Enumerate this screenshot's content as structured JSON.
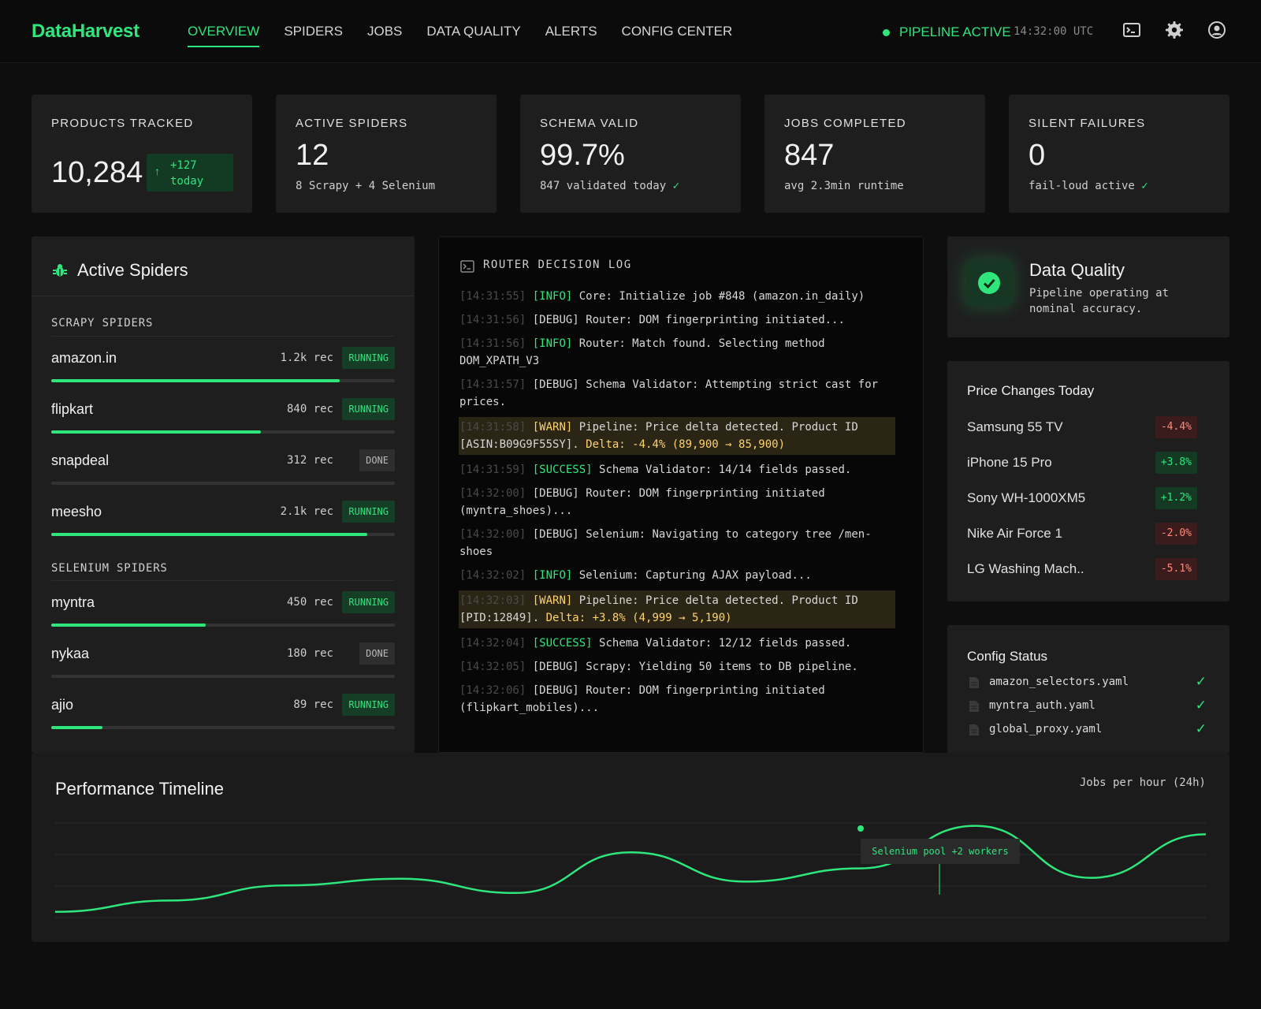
{
  "brand": "DataHarvest",
  "nav": {
    "links": [
      "OVERVIEW",
      "SPIDERS",
      "JOBS",
      "DATA QUALITY",
      "ALERTS",
      "CONFIG CENTER"
    ],
    "status": "PIPELINE ACTIVE",
    "clock": "14:32:00 UTC",
    "icons": [
      "terminal-icon",
      "gear-icon",
      "user-icon"
    ],
    "accent": "#2ee67c"
  },
  "stats": [
    {
      "label": "PRODUCTS TRACKED",
      "value": "10,284",
      "delta_line1": "+127",
      "delta_line2": "today"
    },
    {
      "label": "ACTIVE SPIDERS",
      "value": "12",
      "sub": "8 Scrapy + 4 Selenium"
    },
    {
      "label": "SCHEMA VALID",
      "value": "99.7%",
      "sub": "847 validated today",
      "check": "✓"
    },
    {
      "label": "JOBS COMPLETED",
      "value": "847",
      "sub": "avg 2.3min runtime"
    },
    {
      "label": "SILENT FAILURES",
      "value": "0",
      "sub": "fail-loud active",
      "check": "✓"
    }
  ],
  "spiders": {
    "title": "Active Spiders",
    "scrapy_label": "SCRAPY SPIDERS",
    "selenium_label": "SELENIUM SPIDERS",
    "scrapy": [
      {
        "name": "amazon.in",
        "rec": "1.2k rec",
        "status": "RUNNING",
        "progress": 0.84
      },
      {
        "name": "flipkart",
        "rec": "840 rec",
        "status": "RUNNING",
        "progress": 0.61
      },
      {
        "name": "snapdeal",
        "rec": "312 rec",
        "status": "DONE",
        "progress": 0
      },
      {
        "name": "meesho",
        "rec": "2.1k rec",
        "status": "RUNNING",
        "progress": 0.92
      }
    ],
    "selenium": [
      {
        "name": "myntra",
        "rec": "450 rec",
        "status": "RUNNING",
        "progress": 0.45
      },
      {
        "name": "nykaa",
        "rec": "180 rec",
        "status": "DONE",
        "progress": 0
      },
      {
        "name": "ajio",
        "rec": "89 rec",
        "status": "RUNNING",
        "progress": 0.15
      }
    ]
  },
  "log": {
    "title": "ROUTER DECISION LOG",
    "lines": [
      {
        "ts": "[14:31:55]",
        "level": "[INFO]",
        "kind": "info",
        "text": "Core: Initialize job #848 (amazon.in_daily)"
      },
      {
        "ts": "[14:31:56]",
        "level": "[DEBUG]",
        "kind": "debug",
        "text": "Router: DOM fingerprinting initiated..."
      },
      {
        "ts": "[14:31:56]",
        "level": "[INFO]",
        "kind": "info",
        "text": "Router: Match found. Selecting method DOM_XPATH_V3"
      },
      {
        "ts": "[14:31:57]",
        "level": "[DEBUG]",
        "kind": "debug",
        "text": "Schema Validator: Attempting strict cast for prices."
      },
      {
        "ts": "[14:31:58]",
        "level": "[WARN]",
        "kind": "warn",
        "text": "Pipeline: Price delta detected. Product ID [ASIN:B09G9F55SY].",
        "highlight": "Delta: -4.4% (89,900 → 85,900)"
      },
      {
        "ts": "[14:31:59]",
        "level": "[SUCCESS]",
        "kind": "success",
        "text": "Schema Validator: 14/14 fields passed."
      },
      {
        "ts": "[14:32:00]",
        "level": "[DEBUG]",
        "kind": "debug",
        "text": "Router: DOM fingerprinting initiated (myntra_shoes)..."
      },
      {
        "ts": "[14:32:00]",
        "level": "[DEBUG]",
        "kind": "debug",
        "text": "Selenium: Navigating to category tree /men-shoes"
      },
      {
        "ts": "[14:32:02]",
        "level": "[INFO]",
        "kind": "info",
        "text": "Selenium: Capturing AJAX payload..."
      },
      {
        "ts": "[14:32:03]",
        "level": "[WARN]",
        "kind": "warn",
        "text": "Pipeline: Price delta detected. Product ID [PID:12849].",
        "highlight": "Delta: +3.8% (4,999 → 5,190)"
      },
      {
        "ts": "[14:32:04]",
        "level": "[SUCCESS]",
        "kind": "success",
        "text": "Schema Validator: 12/12 fields passed."
      },
      {
        "ts": "[14:32:05]",
        "level": "[DEBUG]",
        "kind": "debug",
        "text": "Scrapy: Yielding 50 items to DB pipeline."
      },
      {
        "ts": "[14:32:06]",
        "level": "[DEBUG]",
        "kind": "debug",
        "text": "Router: DOM fingerprinting initiated (flipkart_mobiles)..."
      }
    ]
  },
  "quality": {
    "title": "Data Quality",
    "subtitle": "Pipeline operating at nominal accuracy."
  },
  "prices": {
    "title": "Price Changes Today",
    "items": [
      {
        "name": "Samsung 55 TV",
        "change": "-4.4%",
        "dir": "neg"
      },
      {
        "name": "iPhone 15 Pro",
        "change": "+3.8%",
        "dir": "pos"
      },
      {
        "name": "Sony WH-1000XM5",
        "change": "+1.2%",
        "dir": "pos"
      },
      {
        "name": "Nike Air Force 1",
        "change": "-2.0%",
        "dir": "neg"
      },
      {
        "name": "LG Washing Mach..",
        "change": "-5.1%",
        "dir": "neg"
      }
    ]
  },
  "config": {
    "title": "Config Status",
    "files": [
      {
        "name": "amazon_selectors.yaml",
        "check": "✓"
      },
      {
        "name": "myntra_auth.yaml",
        "check": "✓"
      },
      {
        "name": "global_proxy.yaml",
        "check": "✓"
      }
    ]
  },
  "timeline": {
    "title": "Performance Timeline",
    "subtitle": "Jobs per hour (24h)",
    "annotation": "Selenium pool +2 workers",
    "line_color": "#2ee67c",
    "series": [
      0.06,
      0.18,
      0.34,
      0.41,
      0.26,
      0.69,
      0.38,
      0.52,
      0.97,
      0.42,
      0.88
    ]
  }
}
